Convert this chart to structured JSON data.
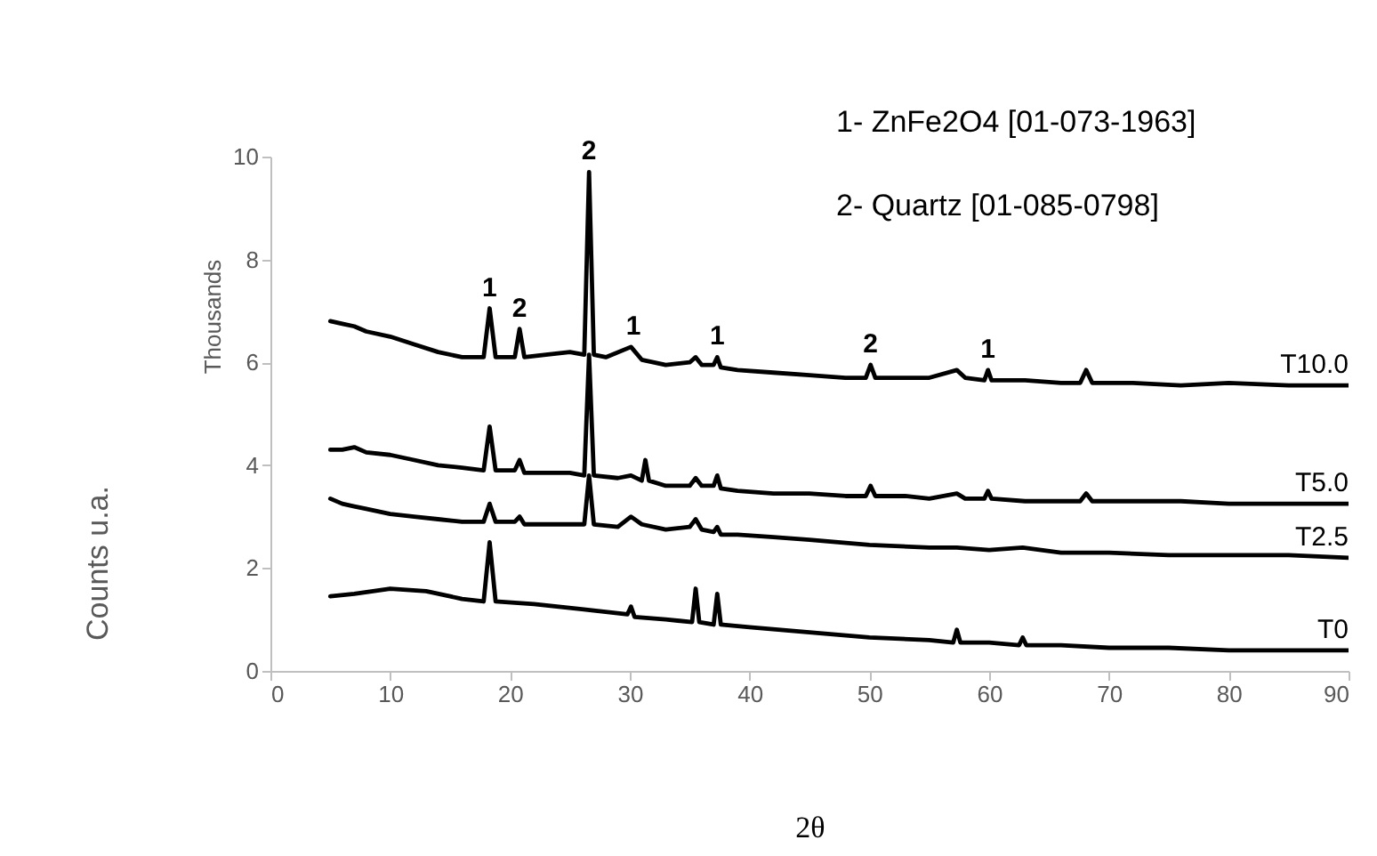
{
  "chart_data": {
    "type": "line",
    "xlabel": "2θ",
    "ylabel": "Counts u.a.",
    "xlim": [
      0,
      90
    ],
    "xticks": [
      0,
      10,
      20,
      30,
      40,
      50,
      60,
      70,
      80,
      90
    ],
    "ylim": [
      0,
      10
    ],
    "yticks": [
      0,
      2,
      4,
      6,
      8,
      10
    ],
    "grid": false,
    "marker": "none",
    "line_style": "solid",
    "annotations": [
      "1- ZnFe2O4 [01-073-1963]",
      "2- Quartz [01-085-0798]",
      "Thousands",
      {
        "text": "1",
        "x": 18.3,
        "y": 7.05
      },
      {
        "text": "2",
        "x": 20.8,
        "y": 6.65
      },
      {
        "text": "2",
        "x": 26.6,
        "y": 9.7
      },
      {
        "text": "1",
        "x": 30.3,
        "y": 6.3
      },
      {
        "text": "1",
        "x": 37.3,
        "y": 6.1
      },
      {
        "text": "2",
        "x": 50.1,
        "y": 5.95
      },
      {
        "text": "1",
        "x": 59.9,
        "y": 5.85
      }
    ],
    "series": [
      {
        "name": "T10.0",
        "color": "#000000",
        "x": [
          5,
          6,
          7,
          8,
          10,
          12,
          14,
          16,
          17.8,
          18.3,
          18.8,
          20.4,
          20.8,
          21.2,
          23,
          25,
          26.2,
          26.6,
          27,
          28,
          30.1,
          31,
          33,
          35,
          35.5,
          36,
          37,
          37.3,
          37.6,
          39,
          42,
          45,
          48,
          49.7,
          50.1,
          50.5,
          53,
          55,
          57.3,
          58,
          59.6,
          59.9,
          60.2,
          63,
          66,
          67.6,
          68.1,
          68.6,
          72,
          76,
          80,
          85,
          90
        ],
        "values": [
          6.8,
          6.75,
          6.7,
          6.6,
          6.5,
          6.35,
          6.2,
          6.1,
          6.1,
          7.05,
          6.1,
          6.1,
          6.65,
          6.1,
          6.15,
          6.2,
          6.15,
          9.7,
          6.15,
          6.1,
          6.3,
          6.05,
          5.95,
          6.0,
          6.1,
          5.95,
          5.95,
          6.1,
          5.9,
          5.85,
          5.8,
          5.75,
          5.7,
          5.7,
          5.95,
          5.7,
          5.7,
          5.7,
          5.85,
          5.7,
          5.65,
          5.85,
          5.65,
          5.65,
          5.6,
          5.6,
          5.85,
          5.6,
          5.6,
          5.55,
          5.6,
          5.55,
          5.55
        ]
      },
      {
        "name": "T5.0",
        "color": "#000000",
        "x": [
          5,
          6,
          7,
          8,
          10,
          12,
          14,
          16,
          17.8,
          18.3,
          18.8,
          20.4,
          20.8,
          21.2,
          23,
          25,
          26.2,
          26.6,
          27,
          29,
          30.1,
          31,
          31.3,
          31.6,
          33,
          35,
          35.5,
          36,
          37,
          37.3,
          37.6,
          39,
          42,
          45,
          48,
          49.7,
          50.1,
          50.5,
          53,
          55,
          57.3,
          58,
          59.6,
          59.9,
          60.2,
          63,
          66,
          67.6,
          68.1,
          68.6,
          72,
          76,
          80,
          85,
          90
        ],
        "values": [
          4.3,
          4.3,
          4.35,
          4.25,
          4.2,
          4.1,
          4.0,
          3.95,
          3.9,
          4.75,
          3.9,
          3.9,
          4.1,
          3.85,
          3.85,
          3.85,
          3.8,
          6.15,
          3.8,
          3.75,
          3.8,
          3.7,
          4.1,
          3.7,
          3.6,
          3.6,
          3.75,
          3.6,
          3.6,
          3.8,
          3.55,
          3.5,
          3.45,
          3.45,
          3.4,
          3.4,
          3.6,
          3.4,
          3.4,
          3.35,
          3.45,
          3.35,
          3.35,
          3.5,
          3.35,
          3.3,
          3.3,
          3.3,
          3.45,
          3.3,
          3.3,
          3.3,
          3.25,
          3.25,
          3.25
        ]
      },
      {
        "name": "T2.5",
        "color": "#000000",
        "x": [
          5,
          6,
          7,
          8,
          10,
          12,
          14,
          16,
          17.8,
          18.3,
          18.8,
          20.4,
          20.8,
          21.2,
          23,
          25,
          26.2,
          26.6,
          27,
          29,
          30.1,
          31,
          33,
          35,
          35.5,
          36,
          37,
          37.3,
          37.6,
          39,
          42,
          45,
          50,
          55,
          57.3,
          60,
          62.8,
          66,
          70,
          75,
          80,
          85,
          90
        ],
        "values": [
          3.35,
          3.25,
          3.2,
          3.15,
          3.05,
          3.0,
          2.95,
          2.9,
          2.9,
          3.25,
          2.9,
          2.9,
          3.0,
          2.85,
          2.85,
          2.85,
          2.85,
          3.8,
          2.85,
          2.8,
          3.0,
          2.85,
          2.75,
          2.8,
          2.95,
          2.75,
          2.7,
          2.8,
          2.65,
          2.65,
          2.6,
          2.55,
          2.45,
          2.4,
          2.4,
          2.35,
          2.4,
          2.3,
          2.3,
          2.25,
          2.25,
          2.25,
          2.2
        ]
      },
      {
        "name": "T0",
        "color": "#000000",
        "x": [
          5,
          7,
          10,
          13,
          16,
          17.8,
          18.3,
          18.8,
          22,
          26,
          29.8,
          30.1,
          30.4,
          33,
          35.2,
          35.5,
          35.8,
          37,
          37.3,
          37.6,
          40,
          45,
          50,
          55,
          57,
          57.3,
          57.6,
          60,
          62.5,
          62.8,
          63.1,
          66,
          70,
          75,
          80,
          85,
          90
        ],
        "values": [
          1.45,
          1.5,
          1.6,
          1.55,
          1.4,
          1.35,
          2.5,
          1.35,
          1.3,
          1.2,
          1.1,
          1.25,
          1.05,
          1.0,
          0.95,
          1.6,
          0.95,
          0.9,
          1.5,
          0.9,
          0.85,
          0.75,
          0.65,
          0.6,
          0.55,
          0.8,
          0.55,
          0.55,
          0.5,
          0.65,
          0.5,
          0.5,
          0.45,
          0.45,
          0.4,
          0.4,
          0.4
        ]
      }
    ]
  }
}
